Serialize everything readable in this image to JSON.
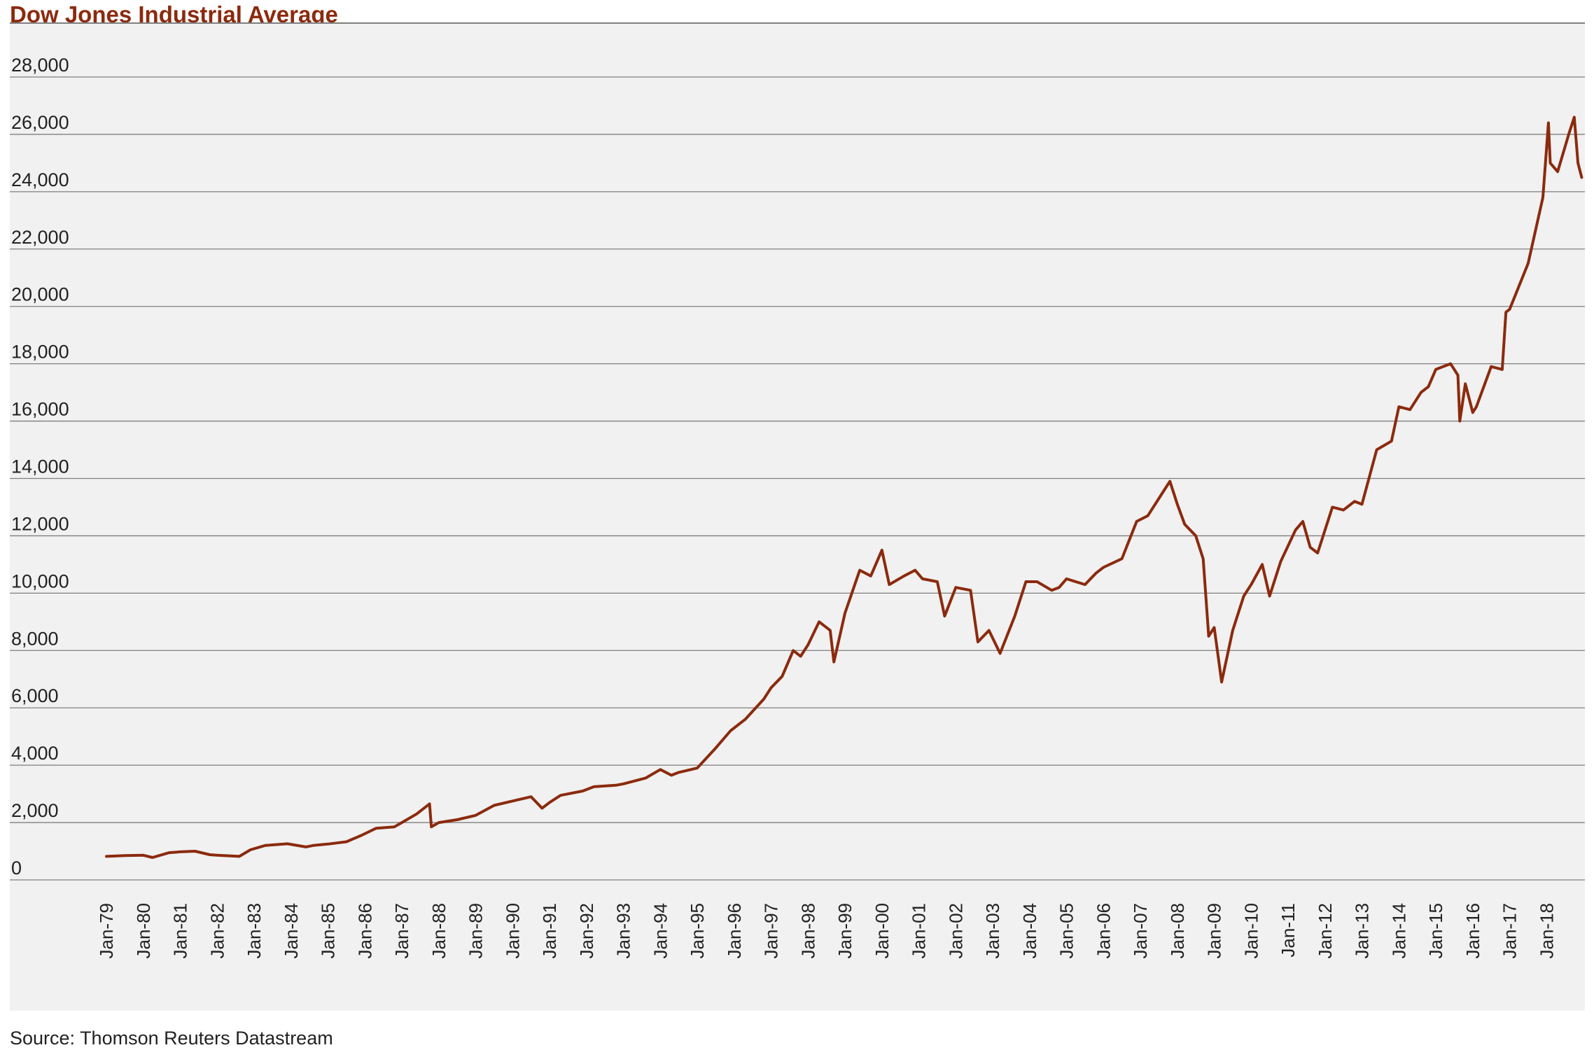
{
  "colors": {
    "line": "#8b2a0e",
    "title": "#8b2a0e",
    "panel_background": "#f0f1f0",
    "gridline": "#7f7f7f",
    "text": "#222222"
  },
  "source_note": "Source: Thomson Reuters Datastream",
  "chart_data": {
    "type": "line",
    "title": "Dow Jones Industrial Average",
    "xlabel": "",
    "ylabel": "",
    "grid": true,
    "legend": "none",
    "ylim": [
      0,
      28000
    ],
    "xlim": [
      1979.0,
      2019.0
    ],
    "y_ticks": [
      0,
      2000,
      4000,
      6000,
      8000,
      10000,
      12000,
      14000,
      16000,
      18000,
      20000,
      22000,
      24000,
      26000,
      28000
    ],
    "y_tick_labels": [
      "0",
      "2,000",
      "4,000",
      "6,000",
      "8,000",
      "10,000",
      "12,000",
      "14,000",
      "16,000",
      "18,000",
      "20,000",
      "22,000",
      "24,000",
      "26,000",
      "28,000"
    ],
    "x_ticks": [
      1979,
      1980,
      1981,
      1982,
      1983,
      1984,
      1985,
      1986,
      1987,
      1988,
      1989,
      1990,
      1991,
      1992,
      1993,
      1994,
      1995,
      1996,
      1997,
      1998,
      1999,
      2000,
      2001,
      2002,
      2003,
      2004,
      2005,
      2006,
      2007,
      2008,
      2009,
      2010,
      2011,
      2012,
      2013,
      2014,
      2015,
      2016,
      2017,
      2018
    ],
    "x_tick_labels": [
      "Jan-79",
      "Jan-80",
      "Jan-81",
      "Jan-82",
      "Jan-83",
      "Jan-84",
      "Jan-85",
      "Jan-86",
      "Jan-87",
      "Jan-88",
      "Jan-89",
      "Jan-90",
      "Jan-91",
      "Jan-92",
      "Jan-93",
      "Jan-94",
      "Jan-95",
      "Jan-96",
      "Jan-97",
      "Jan-98",
      "Jan-99",
      "Jan-00",
      "Jan-01",
      "Jan-02",
      "Jan-03",
      "Jan-04",
      "Jan-05",
      "Jan-06",
      "Jan-07",
      "Jan-08",
      "Jan-09",
      "Jan-10",
      "Jan-11",
      "Jan-12",
      "Jan-13",
      "Jan-14",
      "Jan-15",
      "Jan-16",
      "Jan-17",
      "Jan-18"
    ],
    "series": [
      {
        "x": [
          1979.0,
          1979.5,
          1980.0,
          1980.25,
          1980.7,
          1981.0,
          1981.4,
          1981.8,
          1982.0,
          1982.6,
          1982.9,
          1983.3,
          1983.9,
          1984.4,
          1984.6,
          1985.0,
          1985.5,
          1985.9,
          1986.3,
          1986.8,
          1987.0,
          1987.4,
          1987.75,
          1987.8,
          1988.0,
          1988.5,
          1989.0,
          1989.5,
          1990.0,
          1990.5,
          1990.8,
          1991.0,
          1991.3,
          1991.9,
          1992.2,
          1992.8,
          1993.0,
          1993.6,
          1994.0,
          1994.3,
          1994.5,
          1995.0,
          1995.5,
          1995.9,
          1996.3,
          1996.8,
          1997.0,
          1997.3,
          1997.6,
          1997.8,
          1998.0,
          1998.3,
          1998.6,
          1998.7,
          1999.0,
          1999.4,
          1999.7,
          2000.0,
          2000.2,
          2000.6,
          2000.9,
          2001.1,
          2001.5,
          2001.7,
          2002.0,
          2002.4,
          2002.6,
          2002.9,
          2003.2,
          2003.6,
          2003.9,
          2004.2,
          2004.6,
          2004.8,
          2005.0,
          2005.5,
          2005.8,
          2006.0,
          2006.5,
          2006.9,
          2007.2,
          2007.6,
          2007.8,
          2008.0,
          2008.2,
          2008.5,
          2008.7,
          2008.85,
          2009.0,
          2009.2,
          2009.5,
          2009.8,
          2010.0,
          2010.3,
          2010.5,
          2010.8,
          2011.2,
          2011.4,
          2011.6,
          2011.8,
          2012.2,
          2012.5,
          2012.8,
          2013.0,
          2013.4,
          2013.8,
          2014.0,
          2014.3,
          2014.6,
          2014.8,
          2015.0,
          2015.4,
          2015.6,
          2015.65,
          2015.8,
          2016.0,
          2016.1,
          2016.5,
          2016.8,
          2016.9,
          2017.0,
          2017.5,
          2017.9,
          2018.05,
          2018.1,
          2018.3,
          2018.6,
          2018.75,
          2018.85,
          2018.95
        ],
        "y": [
          820,
          850,
          860,
          780,
          950,
          980,
          1000,
          880,
          860,
          820,
          1050,
          1200,
          1260,
          1150,
          1200,
          1250,
          1330,
          1550,
          1800,
          1850,
          2000,
          2300,
          2650,
          1850,
          2000,
          2100,
          2250,
          2600,
          2750,
          2900,
          2500,
          2700,
          2950,
          3100,
          3250,
          3300,
          3350,
          3550,
          3850,
          3650,
          3750,
          3900,
          4600,
          5200,
          5600,
          6300,
          6700,
          7100,
          8000,
          7800,
          8200,
          9000,
          8700,
          7600,
          9300,
          10800,
          10600,
          11500,
          10300,
          10600,
          10800,
          10500,
          10400,
          9200,
          10200,
          10100,
          8300,
          8700,
          7900,
          9200,
          10400,
          10400,
          10100,
          10200,
          10500,
          10300,
          10700,
          10900,
          11200,
          12500,
          12700,
          13500,
          13900,
          13100,
          12400,
          12000,
          11200,
          8500,
          8800,
          6900,
          8700,
          9900,
          10300,
          11000,
          9900,
          11100,
          12200,
          12500,
          11600,
          11400,
          13000,
          12900,
          13200,
          13100,
          15000,
          15300,
          16500,
          16400,
          17000,
          17200,
          17800,
          18000,
          17600,
          16000,
          17300,
          16300,
          16500,
          17900,
          17800,
          19800,
          19900,
          21500,
          23800,
          26400,
          25000,
          24700,
          26000,
          26600,
          25000,
          24500
        ]
      }
    ]
  }
}
